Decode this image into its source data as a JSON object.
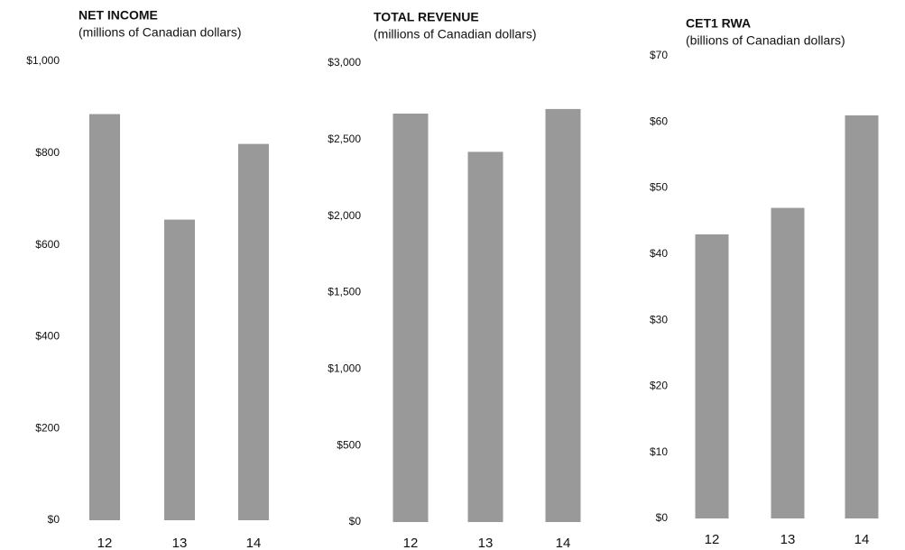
{
  "chart_data": [
    {
      "type": "bar",
      "title": "NET INCOME",
      "subtitle": "(millions of Canadian dollars)",
      "categories": [
        "12",
        "13",
        "14"
      ],
      "values": [
        885,
        655,
        820
      ],
      "color": "#999999",
      "ylim": [
        0,
        1000
      ],
      "yticks": [
        {
          "value": 0,
          "label": "$0"
        },
        {
          "value": 200,
          "label": "$200"
        },
        {
          "value": 400,
          "label": "$400"
        },
        {
          "value": 600,
          "label": "$600"
        },
        {
          "value": 800,
          "label": "$800"
        },
        {
          "value": 1000,
          "label": "$1,000"
        }
      ]
    },
    {
      "type": "bar",
      "title": "TOTAL REVENUE",
      "subtitle": "(millions of Canadian dollars)",
      "categories": [
        "12",
        "13",
        "14"
      ],
      "values": [
        2670,
        2420,
        2700
      ],
      "color": "#999999",
      "ylim": [
        0,
        3000
      ],
      "yticks": [
        {
          "value": 0,
          "label": "$0"
        },
        {
          "value": 500,
          "label": "$500"
        },
        {
          "value": 1000,
          "label": "$1,000"
        },
        {
          "value": 1500,
          "label": "$1,500"
        },
        {
          "value": 2000,
          "label": "$2,000"
        },
        {
          "value": 2500,
          "label": "$2,500"
        },
        {
          "value": 3000,
          "label": "$3,000"
        }
      ]
    },
    {
      "type": "bar",
      "title": "CET1 RWA",
      "subtitle": "(billions of Canadian dollars)",
      "categories": [
        "12",
        "13",
        "14"
      ],
      "values": [
        43,
        47,
        61
      ],
      "color": "#999999",
      "ylim": [
        0,
        70
      ],
      "yticks": [
        {
          "value": 0,
          "label": "$0"
        },
        {
          "value": 10,
          "label": "$10"
        },
        {
          "value": 20,
          "label": "$20"
        },
        {
          "value": 30,
          "label": "$30"
        },
        {
          "value": 40,
          "label": "$40"
        },
        {
          "value": 50,
          "label": "$50"
        },
        {
          "value": 60,
          "label": "$60"
        },
        {
          "value": 70,
          "label": "$70"
        }
      ]
    }
  ]
}
